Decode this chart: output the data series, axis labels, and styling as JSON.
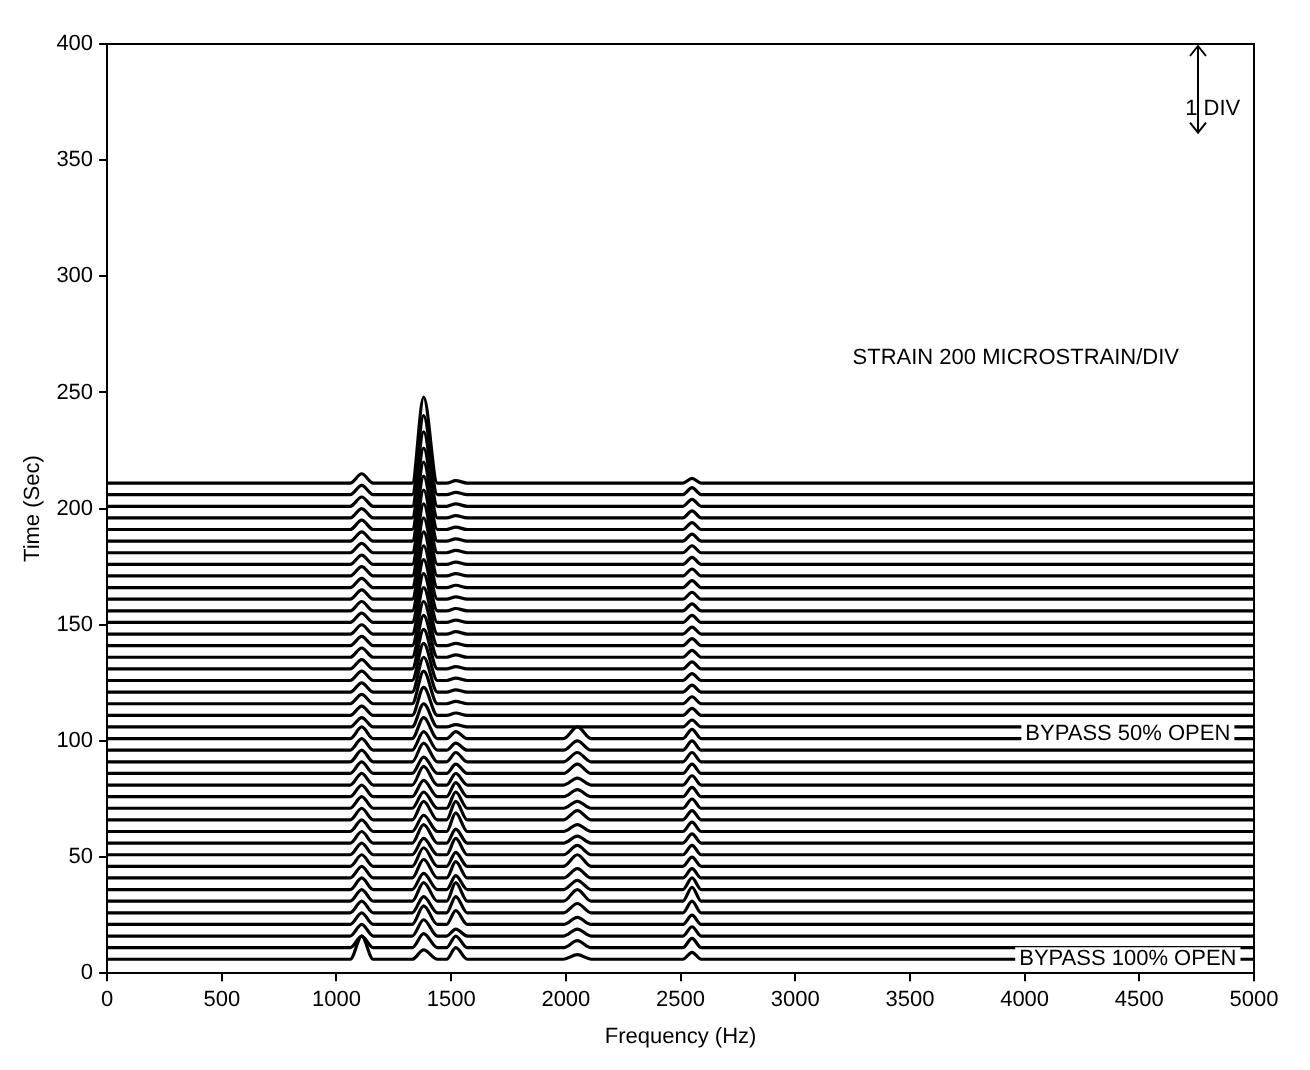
{
  "chart_data": {
    "type": "line",
    "xlabel": "Frequency (Hz)",
    "ylabel": "Time (Sec)",
    "xlim": [
      0,
      5000
    ],
    "xticks": [
      0,
      500,
      1000,
      1500,
      2000,
      2500,
      3000,
      3500,
      4000,
      4500,
      5000
    ],
    "ylim": [
      0,
      400
    ],
    "yticks": [
      0,
      50,
      100,
      150,
      200,
      250,
      300,
      350,
      400
    ],
    "legend": false,
    "marker": "none",
    "annotations": [
      "STRAIN 200 MICROSTRAIN/DIV",
      "1 DIV",
      {
        "text": "BYPASS 50% OPEN",
        "x": 4450,
        "y": 103
      },
      {
        "text": "BYPASS 100% OPEN",
        "x": 4450,
        "y": 6
      }
    ],
    "x": [
      0,
      1060,
      1110,
      1160,
      1330,
      1380,
      1440,
      1480,
      1520,
      1570,
      1990,
      2050,
      2110,
      2510,
      2550,
      2590,
      5000
    ],
    "series": [
      {
        "color": "#000000",
        "values": [
          6,
          6,
          16,
          6,
          6,
          10,
          6,
          6,
          11,
          6,
          6,
          8,
          6,
          6,
          9,
          6,
          6
        ]
      },
      {
        "color": "#000000",
        "values": [
          11,
          11,
          16,
          11,
          11,
          17,
          11,
          11,
          16,
          11,
          11,
          14,
          11,
          11,
          15,
          11,
          11
        ]
      },
      {
        "color": "#000000",
        "values": [
          16,
          16,
          21,
          16,
          16,
          23,
          16,
          16,
          19,
          16,
          16,
          19,
          16,
          16,
          20,
          16,
          16
        ]
      },
      {
        "color": "#000000",
        "values": [
          21,
          21,
          26,
          21,
          21,
          29,
          21,
          21,
          27,
          21,
          21,
          24,
          21,
          21,
          25,
          21,
          21
        ]
      },
      {
        "color": "#000000",
        "values": [
          26,
          26,
          31,
          26,
          26,
          33,
          26,
          26,
          33,
          26,
          26,
          30,
          26,
          26,
          31,
          26,
          26
        ]
      },
      {
        "color": "#000000",
        "values": [
          31,
          31,
          36,
          31,
          31,
          39,
          31,
          31,
          39,
          31,
          31,
          36,
          31,
          31,
          37,
          31,
          31
        ]
      },
      {
        "color": "#000000",
        "values": [
          36,
          36,
          41,
          36,
          36,
          43,
          36,
          36,
          42,
          36,
          36,
          40,
          36,
          36,
          41,
          36,
          36
        ]
      },
      {
        "color": "#000000",
        "values": [
          41,
          41,
          46,
          41,
          41,
          49,
          41,
          41,
          48,
          41,
          41,
          45,
          41,
          41,
          45,
          41,
          41
        ]
      },
      {
        "color": "#000000",
        "values": [
          46,
          46,
          51,
          46,
          46,
          54,
          46,
          46,
          52,
          46,
          46,
          51,
          46,
          46,
          50,
          46,
          46
        ]
      },
      {
        "color": "#000000",
        "values": [
          51,
          51,
          56,
          51,
          51,
          58,
          51,
          51,
          58,
          51,
          51,
          55,
          51,
          51,
          55,
          51,
          51
        ]
      },
      {
        "color": "#000000",
        "values": [
          56,
          56,
          61,
          56,
          56,
          64,
          56,
          56,
          62,
          56,
          56,
          59,
          56,
          56,
          60,
          56,
          56
        ]
      },
      {
        "color": "#000000",
        "values": [
          61,
          61,
          66,
          61,
          61,
          68,
          61,
          61,
          69,
          61,
          61,
          64,
          61,
          61,
          65,
          61,
          61
        ]
      },
      {
        "color": "#000000",
        "values": [
          66,
          66,
          71,
          66,
          66,
          74,
          66,
          66,
          74,
          66,
          66,
          70,
          66,
          66,
          70,
          66,
          66
        ]
      },
      {
        "color": "#000000",
        "values": [
          71,
          71,
          76,
          71,
          71,
          78,
          71,
          71,
          78,
          71,
          71,
          74,
          71,
          71,
          75,
          71,
          71
        ]
      },
      {
        "color": "#000000",
        "values": [
          76,
          76,
          81,
          76,
          76,
          83,
          76,
          76,
          82,
          76,
          76,
          79,
          76,
          76,
          80,
          76,
          76
        ]
      },
      {
        "color": "#000000",
        "values": [
          81,
          81,
          86,
          81,
          81,
          89,
          81,
          81,
          86,
          81,
          81,
          84,
          81,
          81,
          85,
          81,
          81
        ]
      },
      {
        "color": "#000000",
        "values": [
          86,
          86,
          91,
          86,
          86,
          93,
          86,
          86,
          90,
          86,
          86,
          90,
          86,
          86,
          90,
          86,
          86
        ]
      },
      {
        "color": "#000000",
        "values": [
          91,
          91,
          96,
          91,
          91,
          99,
          91,
          91,
          95,
          91,
          91,
          95,
          91,
          91,
          95,
          91,
          91
        ]
      },
      {
        "color": "#000000",
        "values": [
          96,
          96,
          101,
          96,
          96,
          104,
          96,
          96,
          99,
          96,
          96,
          100,
          96,
          96,
          100,
          96,
          96
        ]
      },
      {
        "color": "#000000",
        "values": [
          101,
          101,
          106,
          101,
          101,
          110,
          101,
          101,
          104,
          101,
          101,
          106,
          101,
          101,
          105,
          101,
          101
        ]
      },
      {
        "color": "#000000",
        "values": [
          106,
          106,
          110,
          106,
          106,
          116,
          106,
          106,
          107,
          106,
          106,
          106,
          106,
          106,
          109,
          106,
          106
        ]
      },
      {
        "color": "#000000",
        "values": [
          111,
          111,
          115,
          111,
          111,
          123,
          111,
          111,
          112,
          111,
          111,
          111,
          111,
          111,
          114,
          111,
          111
        ]
      },
      {
        "color": "#000000",
        "values": [
          116,
          116,
          120,
          116,
          116,
          130,
          116,
          116,
          117,
          116,
          116,
          116,
          116,
          116,
          119,
          116,
          116
        ]
      },
      {
        "color": "#000000",
        "values": [
          121,
          121,
          125,
          121,
          121,
          136,
          121,
          121,
          122,
          121,
          121,
          121,
          121,
          121,
          124,
          121,
          121
        ]
      },
      {
        "color": "#000000",
        "values": [
          126,
          126,
          130,
          126,
          126,
          142,
          126,
          126,
          127,
          126,
          126,
          126,
          126,
          126,
          129,
          126,
          126
        ]
      },
      {
        "color": "#000000",
        "values": [
          131,
          131,
          135,
          131,
          131,
          148,
          131,
          131,
          132,
          131,
          131,
          131,
          131,
          131,
          134,
          131,
          131
        ]
      },
      {
        "color": "#000000",
        "values": [
          136,
          136,
          140,
          136,
          136,
          154,
          136,
          136,
          137,
          136,
          136,
          136,
          136,
          136,
          139,
          136,
          136
        ]
      },
      {
        "color": "#000000",
        "values": [
          141,
          141,
          145,
          141,
          141,
          160,
          141,
          141,
          142,
          141,
          141,
          141,
          141,
          141,
          144,
          141,
          141
        ]
      },
      {
        "color": "#000000",
        "values": [
          146,
          146,
          150,
          146,
          146,
          166,
          146,
          146,
          147,
          146,
          146,
          146,
          146,
          146,
          149,
          146,
          146
        ]
      },
      {
        "color": "#000000",
        "values": [
          151,
          151,
          155,
          151,
          151,
          172,
          151,
          151,
          152,
          151,
          151,
          151,
          151,
          151,
          154,
          151,
          151
        ]
      },
      {
        "color": "#000000",
        "values": [
          156,
          156,
          160,
          156,
          156,
          178,
          156,
          156,
          157,
          156,
          156,
          156,
          156,
          156,
          159,
          156,
          156
        ]
      },
      {
        "color": "#000000",
        "values": [
          161,
          161,
          165,
          161,
          161,
          184,
          161,
          161,
          162,
          161,
          161,
          161,
          161,
          161,
          164,
          161,
          161
        ]
      },
      {
        "color": "#000000",
        "values": [
          166,
          166,
          170,
          166,
          166,
          190,
          166,
          166,
          167,
          166,
          166,
          166,
          166,
          166,
          169,
          166,
          166
        ]
      },
      {
        "color": "#000000",
        "values": [
          171,
          171,
          175,
          171,
          171,
          196,
          171,
          171,
          172,
          171,
          171,
          171,
          171,
          171,
          174,
          171,
          171
        ]
      },
      {
        "color": "#000000",
        "values": [
          176,
          176,
          180,
          176,
          176,
          202,
          176,
          176,
          177,
          176,
          176,
          176,
          176,
          176,
          179,
          176,
          176
        ]
      },
      {
        "color": "#000000",
        "values": [
          181,
          181,
          185,
          181,
          181,
          208,
          181,
          181,
          182,
          181,
          181,
          181,
          181,
          181,
          184,
          181,
          181
        ]
      },
      {
        "color": "#000000",
        "values": [
          186,
          186,
          190,
          186,
          186,
          214,
          186,
          186,
          187,
          186,
          186,
          186,
          186,
          186,
          189,
          186,
          186
        ]
      },
      {
        "color": "#000000",
        "values": [
          191,
          191,
          195,
          191,
          191,
          220,
          191,
          191,
          192,
          191,
          191,
          191,
          191,
          191,
          194,
          191,
          191
        ]
      },
      {
        "color": "#000000",
        "values": [
          196,
          196,
          200,
          196,
          196,
          226,
          196,
          196,
          197,
          196,
          196,
          196,
          196,
          196,
          199,
          196,
          196
        ]
      },
      {
        "color": "#000000",
        "values": [
          201,
          201,
          205,
          201,
          201,
          233,
          201,
          201,
          202,
          201,
          201,
          201,
          201,
          201,
          204,
          201,
          201
        ]
      },
      {
        "color": "#000000",
        "values": [
          206,
          206,
          210,
          206,
          206,
          240,
          206,
          206,
          207,
          206,
          206,
          206,
          206,
          206,
          209,
          206,
          206
        ]
      },
      {
        "color": "#000000",
        "values": [
          211,
          211,
          215,
          211,
          211,
          248,
          211,
          211,
          212,
          211,
          211,
          211,
          211,
          211,
          213,
          211,
          211
        ]
      }
    ]
  }
}
